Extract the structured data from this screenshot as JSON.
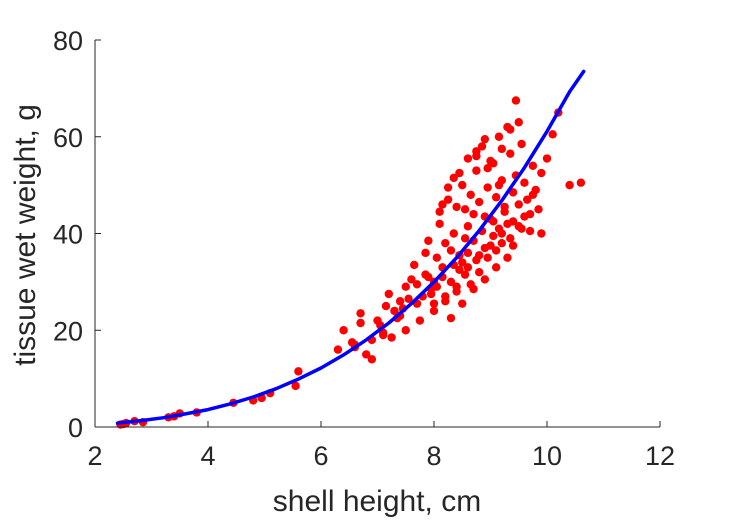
{
  "chart_data": {
    "type": "scatter",
    "title": "",
    "xlabel": "shell height, cm",
    "ylabel": "tissue wet weight, g",
    "xlim": [
      2,
      12
    ],
    "ylim": [
      0,
      80
    ],
    "xticks": [
      2,
      4,
      6,
      8,
      10,
      12
    ],
    "yticks": [
      0,
      20,
      40,
      60,
      80
    ],
    "grid": false,
    "legend": "none",
    "colors": {
      "points": "#ff0000",
      "fit": "#0000ff",
      "axis": "#262626"
    },
    "series": [
      {
        "kind": "points",
        "x": [
          2.45,
          2.5,
          2.55,
          2.7,
          2.85,
          3.3,
          3.4,
          3.5,
          3.8,
          4.45,
          4.8,
          4.95,
          5.1,
          5.55,
          5.6,
          6.3,
          6.4,
          6.55,
          6.6,
          6.7,
          6.8,
          6.9,
          7.0,
          7.1,
          7.15,
          7.2,
          7.3,
          7.35,
          7.4,
          7.5,
          7.5,
          7.6,
          7.65,
          7.7,
          7.8,
          7.85,
          7.9,
          7.95,
          8.0,
          8.05,
          8.1,
          8.15,
          8.2,
          8.25,
          8.3,
          8.35,
          8.4,
          8.45,
          8.5,
          8.55,
          8.6,
          8.65,
          8.7,
          8.75,
          8.8,
          8.85,
          8.9,
          8.95,
          9.0,
          9.05,
          9.1,
          9.15,
          9.2,
          9.25,
          9.3,
          9.35,
          9.4,
          9.45,
          9.5,
          9.55,
          9.6,
          9.65,
          9.7,
          9.75,
          9.8,
          9.85,
          9.9,
          10.0,
          10.1,
          10.4,
          6.6,
          6.9,
          7.05,
          7.25,
          7.4,
          7.55,
          7.7,
          7.75,
          7.85,
          7.95,
          8.0,
          8.05,
          8.15,
          8.2,
          8.3,
          8.35,
          8.4,
          8.45,
          8.5,
          8.55,
          8.6,
          8.65,
          8.7,
          8.75,
          8.8,
          8.85,
          8.9,
          8.95,
          9.0,
          9.05,
          9.1,
          9.15,
          9.2,
          9.25,
          9.3,
          9.35,
          9.4,
          9.5,
          9.6,
          9.7,
          8.1,
          8.25,
          8.45,
          8.6,
          8.75,
          8.9,
          9.05,
          9.2,
          9.35,
          9.5,
          8.0,
          8.2,
          8.4,
          8.6,
          8.8,
          9.0,
          9.2,
          9.4,
          8.3,
          8.5,
          8.7,
          8.9,
          9.1,
          9.3,
          7.9,
          8.15,
          8.35,
          8.55,
          8.75,
          8.95,
          9.15,
          9.45,
          9.55,
          9.75,
          9.9,
          10.2,
          10.6,
          6.7,
          7.1,
          7.45
        ],
        "y": [
          0.5,
          0.6,
          0.8,
          1.2,
          1.0,
          2.0,
          2.2,
          2.8,
          3.0,
          5.0,
          5.5,
          6.0,
          7.0,
          8.5,
          11.5,
          16.0,
          20.0,
          17.5,
          16.5,
          23.5,
          15.0,
          18.0,
          22.0,
          19.0,
          25.0,
          27.5,
          24.0,
          22.5,
          26.0,
          29.0,
          20.0,
          30.5,
          33.5,
          25.5,
          27.0,
          36.0,
          31.0,
          28.5,
          30.0,
          35.0,
          42.0,
          33.0,
          38.0,
          47.0,
          36.5,
          40.0,
          45.5,
          35.5,
          50.0,
          39.0,
          41.5,
          48.0,
          44.0,
          53.0,
          46.5,
          58.0,
          43.5,
          49.5,
          55.0,
          42.5,
          47.5,
          60.0,
          51.0,
          44.5,
          62.0,
          56.5,
          48.5,
          52.0,
          46.0,
          58.5,
          50.5,
          47.0,
          44.0,
          54.0,
          49.0,
          45.0,
          40.0,
          55.5,
          60.5,
          50.0,
          17.0,
          14.0,
          21.0,
          18.5,
          23.0,
          26.5,
          29.5,
          22.0,
          31.5,
          27.5,
          25.5,
          29.0,
          31.0,
          27.0,
          30.0,
          33.5,
          28.0,
          32.5,
          34.0,
          31.5,
          36.0,
          29.5,
          38.5,
          34.5,
          32.0,
          40.5,
          37.0,
          35.0,
          43.0,
          39.5,
          36.5,
          41.0,
          38.0,
          45.5,
          42.0,
          39.0,
          37.5,
          41.5,
          43.5,
          40.5,
          44.5,
          49.5,
          52.5,
          55.5,
          57.0,
          59.5,
          54.5,
          57.5,
          61.5,
          63.0,
          24.0,
          26.0,
          29.0,
          33.0,
          35.5,
          37.5,
          40.0,
          42.5,
          22.5,
          25.5,
          28.5,
          30.5,
          33.0,
          35.0,
          38.5,
          46.0,
          51.5,
          45.0,
          56.0,
          53.5,
          50.0,
          67.5,
          41.0,
          48.0,
          52.5,
          65.0,
          50.5,
          21.5,
          19.5,
          24.5
        ]
      },
      {
        "kind": "fit-curve",
        "x": [
          2.4,
          2.8,
          3.2,
          3.6,
          4.0,
          4.4,
          4.8,
          5.2,
          5.6,
          6.0,
          6.4,
          6.8,
          7.2,
          7.6,
          8.0,
          8.4,
          8.8,
          9.2,
          9.6,
          10.0,
          10.4,
          10.65
        ],
        "y": [
          0.8,
          1.3,
          1.9,
          2.7,
          3.6,
          4.8,
          6.2,
          7.9,
          9.9,
          12.2,
          14.9,
          18.0,
          21.5,
          25.5,
          30.0,
          35.0,
          40.6,
          46.8,
          53.6,
          61.1,
          69.3,
          73.5
        ]
      }
    ]
  }
}
